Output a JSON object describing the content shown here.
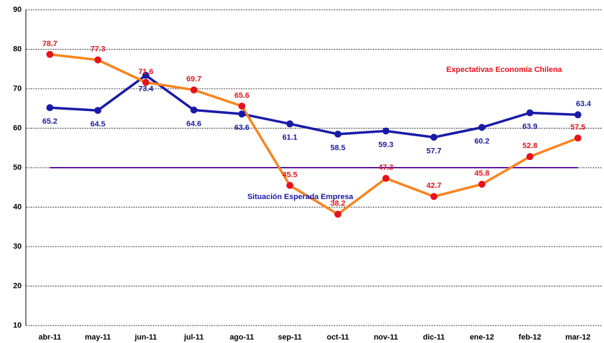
{
  "chart_data": {
    "type": "line",
    "categories": [
      "abr-11",
      "may-11",
      "jun-11",
      "jul-11",
      "ago-11",
      "sep-11",
      "oct-11",
      "nov-11",
      "dic-11",
      "ene-12",
      "feb-12",
      "mar-12"
    ],
    "series": [
      {
        "name": "Situación Esperada Empresa",
        "color": "#1a1aa6",
        "values": [
          65.2,
          64.5,
          73.4,
          64.6,
          63.6,
          61.1,
          58.5,
          59.3,
          57.7,
          60.2,
          63.9,
          63.4
        ]
      },
      {
        "name": "Expectativas Economía Chilena",
        "color": "#f7841f",
        "label_color": "#e8121c",
        "values": [
          78.7,
          77.3,
          71.6,
          69.7,
          65.6,
          45.5,
          38.2,
          47.3,
          42.7,
          45.8,
          52.8,
          57.5
        ]
      }
    ],
    "reference_line": {
      "value": 50,
      "color": "#5a1aa0"
    },
    "ylim": [
      10,
      90
    ],
    "yticks": [
      10,
      20,
      30,
      40,
      50,
      60,
      70,
      80,
      90
    ],
    "grid": true
  }
}
